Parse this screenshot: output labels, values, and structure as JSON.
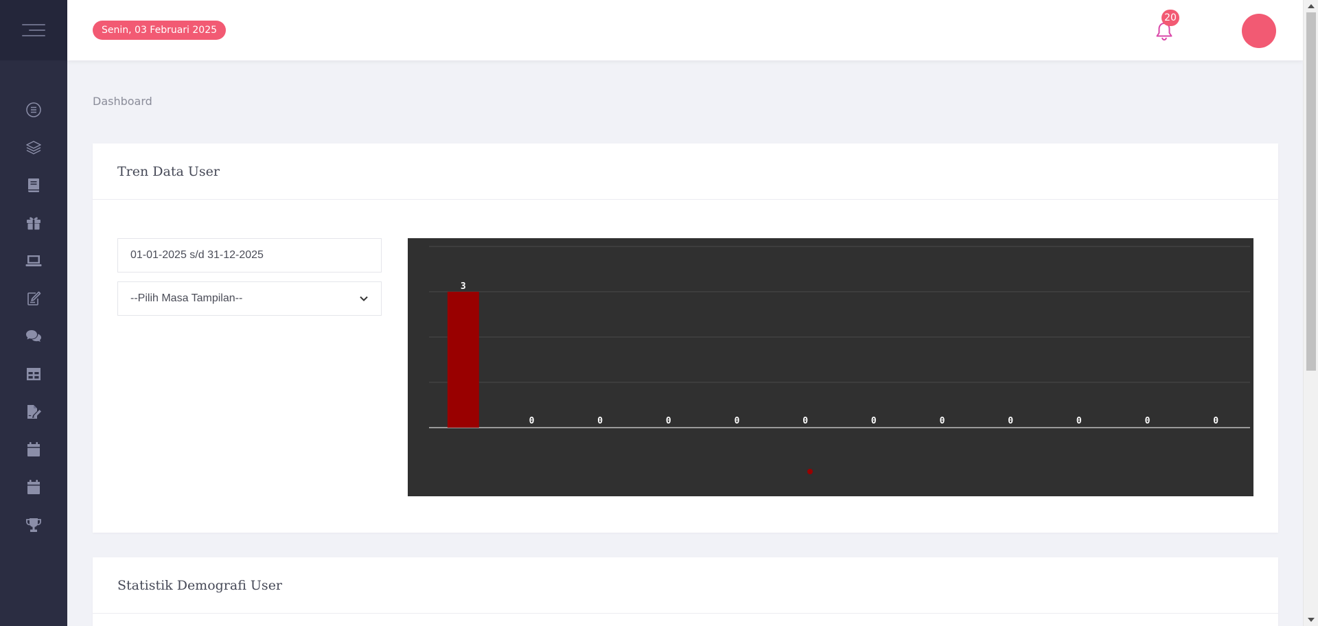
{
  "header": {
    "date_badge": "Senin, 03 Februari 2025",
    "notification_count": "20"
  },
  "colors": {
    "accent": "#f25a73",
    "sidebar_bg": "#2b2d42",
    "sidebar_icon": "#8b8ea8",
    "chart_bg": "#303030",
    "bar": "#990000"
  },
  "sidebar": {
    "items": [
      {
        "icon": "list-circle-icon"
      },
      {
        "icon": "layers-icon"
      },
      {
        "icon": "book-icon"
      },
      {
        "icon": "gift-icon"
      },
      {
        "icon": "laptop-icon"
      },
      {
        "icon": "edit-icon"
      },
      {
        "icon": "comments-icon"
      },
      {
        "icon": "table-icon"
      },
      {
        "icon": "file-signature-icon"
      },
      {
        "icon": "calendar-icon"
      },
      {
        "icon": "calendar-alt-icon"
      },
      {
        "icon": "trophy-icon"
      }
    ]
  },
  "main": {
    "page_title": "Dashboard",
    "card1": {
      "title": "Tren Data User",
      "date_range_value": "01-01-2025 s/d 31-12-2025",
      "select_value": "--Pilih Masa Tampilan--"
    },
    "card2": {
      "title": "Statistik Demografi User"
    }
  },
  "chart_data": {
    "type": "bar",
    "values": [
      3,
      0,
      0,
      0,
      0,
      0,
      0,
      0,
      0,
      0,
      0,
      0
    ],
    "data_labels": [
      "3",
      "0",
      "0",
      "0",
      "0",
      "0",
      "0",
      "0",
      "0",
      "0",
      "0",
      "0"
    ],
    "ylim": [
      0,
      4
    ],
    "grid": true,
    "legend_placement": "bottom-center"
  }
}
